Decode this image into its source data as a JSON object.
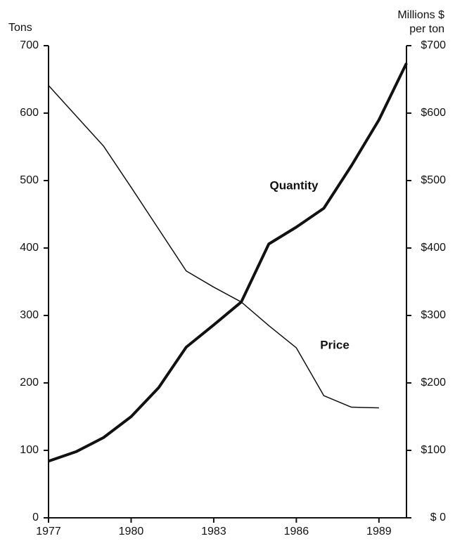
{
  "chart_data": {
    "type": "line",
    "ylabel": "Tons",
    "y2label": [
      "Millions $",
      "per ton"
    ],
    "x": [
      1977,
      1978,
      1979,
      1980,
      1981,
      1982,
      1983,
      1984,
      1985,
      1986,
      1987,
      1988,
      1989,
      1990
    ],
    "xlim": [
      1977,
      1990
    ],
    "xticks": [
      1977,
      1980,
      1983,
      1986,
      1989
    ],
    "ylim": [
      0,
      700
    ],
    "yticks": [
      0,
      100,
      200,
      300,
      400,
      500,
      600,
      700
    ],
    "y2lim": [
      0,
      700
    ],
    "y2ticks": [
      {
        "value": 0,
        "label": "$ 0"
      },
      {
        "value": 100,
        "label": "$100"
      },
      {
        "value": 200,
        "label": "$200"
      },
      {
        "value": 300,
        "label": "$300"
      },
      {
        "value": 400,
        "label": "$400"
      },
      {
        "value": 500,
        "label": "$500"
      },
      {
        "value": 600,
        "label": "$600"
      },
      {
        "value": 700,
        "label": "$700"
      }
    ],
    "series": [
      {
        "name": "Quantity",
        "color": "#111111",
        "width": 4,
        "values": [
          84,
          98,
          119,
          150,
          193,
          253,
          286,
          320,
          406,
          431,
          459,
          522,
          590,
          674
        ]
      },
      {
        "name": "Price",
        "color": "#111111",
        "width": 1.5,
        "axis": "y2",
        "values": [
          641,
          596,
          551,
          490,
          428,
          366,
          342,
          320,
          285,
          252,
          181,
          164,
          163,
          null
        ]
      }
    ]
  }
}
